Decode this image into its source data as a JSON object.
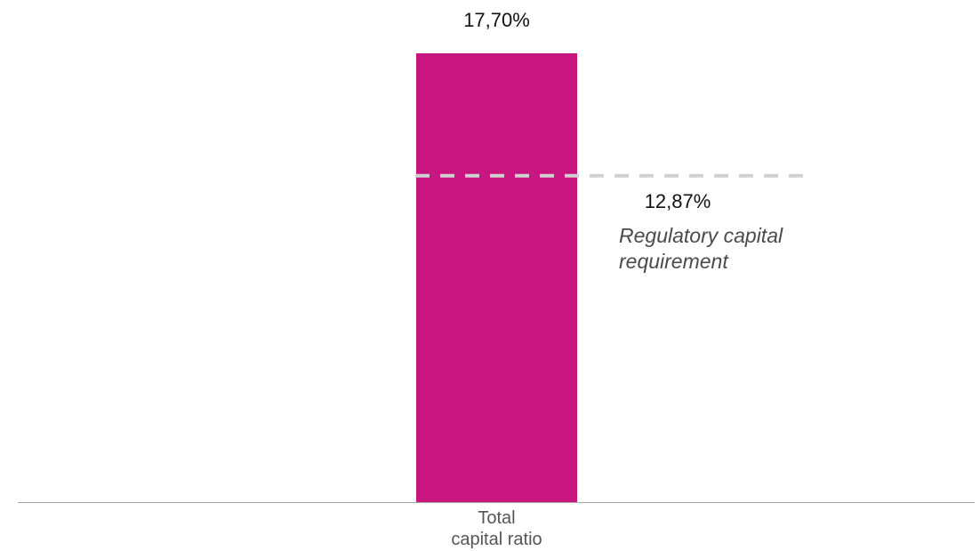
{
  "chart_data": {
    "type": "bar",
    "categories": [
      "Total capital ratio"
    ],
    "category_label_lines": [
      [
        "Total",
        "capital ratio"
      ]
    ],
    "values": [
      17.7
    ],
    "value_labels": [
      "17,70%"
    ],
    "ylim": [
      0,
      17.7
    ],
    "grid": false,
    "colors": {
      "bar": "#C8157F",
      "reference_line": "#D0D0D0",
      "axis": "#A6A6A6"
    },
    "reference_line": {
      "value": 12.87,
      "value_label": "12,87%",
      "label_lines": [
        "Regulatory capital",
        "requirement"
      ],
      "style": "dashed"
    },
    "title": "",
    "xlabel": "",
    "ylabel": ""
  }
}
